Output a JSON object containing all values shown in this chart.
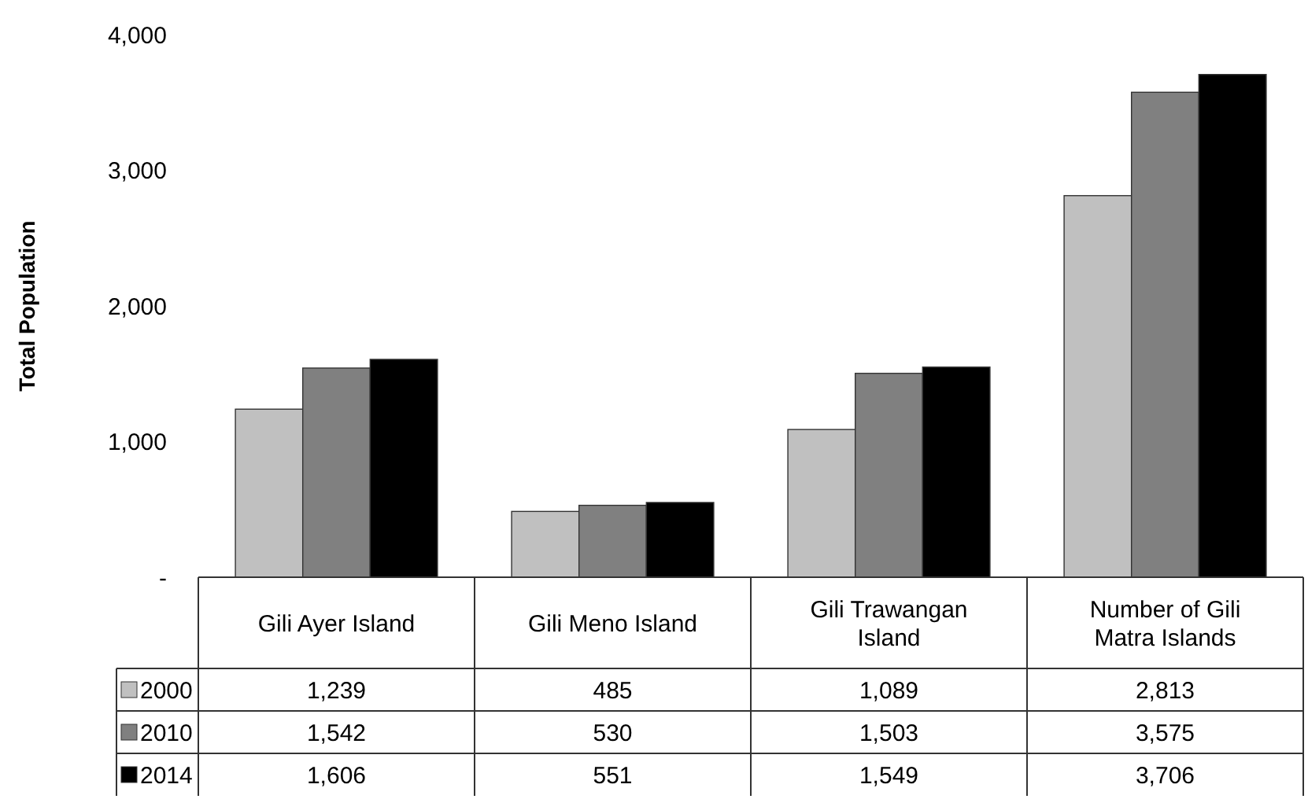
{
  "chart_data": {
    "type": "bar",
    "ylabel": "Total Population",
    "categories": [
      "Gili Ayer Island",
      "Gili Meno Island",
      "Gili Trawangan Island",
      "Number of Gili Matra Islands"
    ],
    "series": [
      {
        "name": "2000",
        "color": "#c0c0c0",
        "values": [
          1239,
          485,
          1089,
          2813
        ],
        "value_labels": [
          "1,239",
          "485",
          "1,089",
          "2,813"
        ]
      },
      {
        "name": "2010",
        "color": "#808080",
        "values": [
          1542,
          530,
          1503,
          3575
        ],
        "value_labels": [
          "1,542",
          "530",
          "1,503",
          "3,575"
        ]
      },
      {
        "name": "2014",
        "color": "#000000",
        "values": [
          1606,
          551,
          1549,
          3706
        ],
        "value_labels": [
          "1,606",
          "551",
          "1,549",
          "3,706"
        ]
      }
    ],
    "ylim": [
      0,
      4000
    ],
    "yticks": [
      {
        "value": 0,
        "label": "-"
      },
      {
        "value": 1000,
        "label": "1,000"
      },
      {
        "value": 2000,
        "label": "2,000"
      },
      {
        "value": 3000,
        "label": "3,000"
      },
      {
        "value": 4000,
        "label": "4,000"
      }
    ],
    "grid": false,
    "legend": "bottom"
  }
}
